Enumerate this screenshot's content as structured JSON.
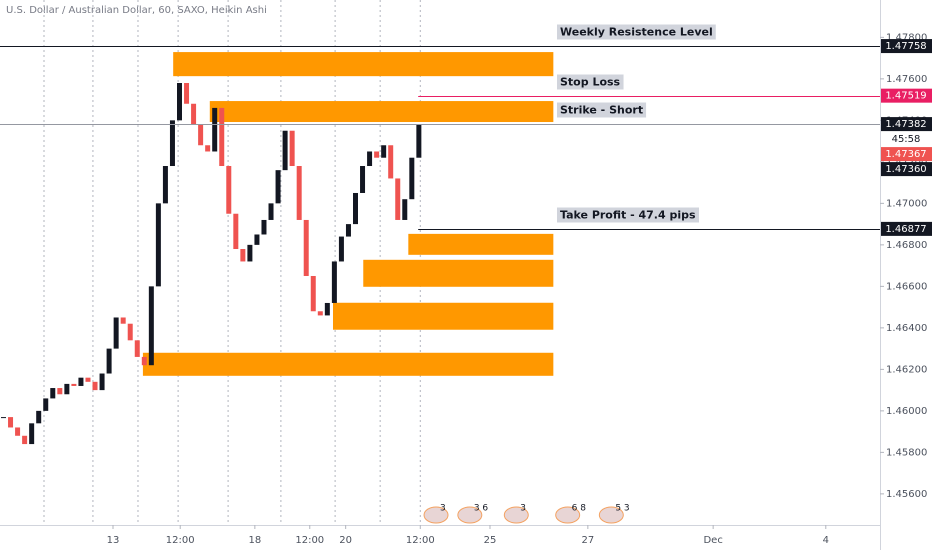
{
  "chart_data": {
    "type": "candlestick",
    "title": "U.S. Dollar / Australian Dollar, 60, SAXO, Heikin Ashi",
    "x": [
      0,
      1,
      2,
      3,
      4,
      5,
      6,
      7,
      8,
      9,
      10,
      11,
      12,
      13,
      14,
      15,
      16,
      17,
      18,
      19,
      20,
      21,
      22,
      23,
      24,
      25,
      26,
      27,
      28,
      29,
      30,
      31,
      32,
      33,
      34,
      35,
      36,
      37,
      38,
      39,
      40,
      41,
      42,
      43,
      44,
      45,
      46,
      47,
      48,
      49,
      50,
      51,
      52,
      53,
      54,
      55,
      56,
      57,
      58,
      59
    ],
    "values": [
      1.4597,
      1.4592,
      1.4588,
      1.4584,
      1.4594,
      1.46,
      1.4606,
      1.4611,
      1.4608,
      1.4613,
      1.4612,
      1.4616,
      1.4614,
      1.461,
      1.4618,
      1.463,
      1.4645,
      1.4642,
      1.4634,
      1.4626,
      1.4622,
      1.466,
      1.47,
      1.4718,
      1.474,
      1.4758,
      1.4748,
      1.4738,
      1.4728,
      1.4725,
      1.4746,
      1.4718,
      1.4695,
      1.4678,
      1.4672,
      1.468,
      1.4685,
      1.4692,
      1.47,
      1.4716,
      1.4735,
      1.4718,
      1.4692,
      1.4665,
      1.4648,
      1.4646,
      1.4652,
      1.4672,
      1.4684,
      1.469,
      1.4705,
      1.4718,
      1.4725,
      1.4722,
      1.4728,
      1.4712,
      1.4692,
      1.4702,
      1.4722,
      1.4738
    ],
    "up_color": "#131722",
    "down_color": "#ef5350",
    "xlim": [
      0,
      125
    ],
    "ylim": [
      1.4545,
      1.4798
    ],
    "xticks": [
      {
        "value": 16.05,
        "label": "13"
      },
      {
        "value": 25.6,
        "label": "12:00"
      },
      {
        "value": 36.2,
        "label": "18"
      },
      {
        "value": 44,
        "label": "12:00"
      },
      {
        "value": 49.1,
        "label": "20"
      },
      {
        "value": 59.7,
        "label": "12:00"
      },
      {
        "value": 69.6,
        "label": "25"
      },
      {
        "value": 83.5,
        "label": "27"
      },
      {
        "value": 101.3,
        "label": "Dec"
      },
      {
        "value": 117.3,
        "label": "4"
      }
    ],
    "yticks": [
      {
        "value": 1.456,
        "label": "1.45600"
      },
      {
        "value": 1.458,
        "label": "1.45800"
      },
      {
        "value": 1.46,
        "label": "1.46000"
      },
      {
        "value": 1.462,
        "label": "1.46200"
      },
      {
        "value": 1.464,
        "label": "1.46400"
      },
      {
        "value": 1.466,
        "label": "1.46600"
      },
      {
        "value": 1.468,
        "label": "1.46800"
      },
      {
        "value": 1.47,
        "label": "1.47000"
      },
      {
        "value": 1.472,
        "label": "1.47200"
      },
      {
        "value": 1.474,
        "label": "1.47400"
      },
      {
        "value": 1.476,
        "label": "1.47600"
      },
      {
        "value": 1.478,
        "label": "1.47800"
      }
    ],
    "session_lines": [
      6.25,
      13.2,
      19.6,
      25.3,
      32.4,
      39.9,
      47.6,
      54,
      59.7
    ],
    "zones": [
      {
        "x": [
          24.6,
          78.6
        ],
        "y": [
          1.47613,
          1.47729
        ]
      },
      {
        "x": [
          29.8,
          78.6
        ],
        "y": [
          1.47392,
          1.47493
        ]
      },
      {
        "x": [
          58,
          78.6
        ],
        "y": [
          1.46752,
          1.46853
        ]
      },
      {
        "x": [
          51.6,
          78.6
        ],
        "y": [
          1.46598,
          1.46728
        ]
      },
      {
        "x": [
          47.3,
          78.6
        ],
        "y": [
          1.46391,
          1.46521
        ]
      },
      {
        "x": [
          20.3,
          78.6
        ],
        "y": [
          1.46169,
          1.4628
        ]
      }
    ],
    "zone_color": "#ff9800",
    "levels": [
      {
        "value": 1.47758,
        "from": 0,
        "color": "#131722",
        "text": "Weekly Resistence Level"
      },
      {
        "value": 1.47519,
        "from": 59.4,
        "color": "#e91e63",
        "text": "Stop Loss"
      },
      {
        "value": 1.47382,
        "from": 0,
        "color": "#9598a1",
        "text": "Strike - Short"
      },
      {
        "value": 1.46877,
        "from": 59.4,
        "color": "#131722",
        "text": "Take Profit - 47.4 pips"
      }
    ],
    "price_tags": [
      {
        "value": 1.47758,
        "label": "1.47758",
        "color": "#131722"
      },
      {
        "value": 1.47519,
        "label": "1.47519",
        "color": "#e91e63"
      },
      {
        "value": 1.47382,
        "label": "1.47382",
        "color": "#131722"
      },
      {
        "label": "45:58",
        "color": "#ffffff"
      },
      {
        "value": 1.47367,
        "label": "1.47367",
        "color": "#ef5350"
      },
      {
        "value": 1.4736,
        "label": "1.47360",
        "color": "#131722"
      },
      {
        "value": 1.46877,
        "label": "1.46877",
        "color": "#131722"
      }
    ],
    "events": [
      {
        "x": 60.8,
        "label": "3"
      },
      {
        "x": 65.6,
        "label": "3  6"
      },
      {
        "x": 72.2,
        "label": "3"
      },
      {
        "x": 79.5,
        "label": "6  8"
      },
      {
        "x": 85.7,
        "label": "5  3"
      }
    ]
  }
}
